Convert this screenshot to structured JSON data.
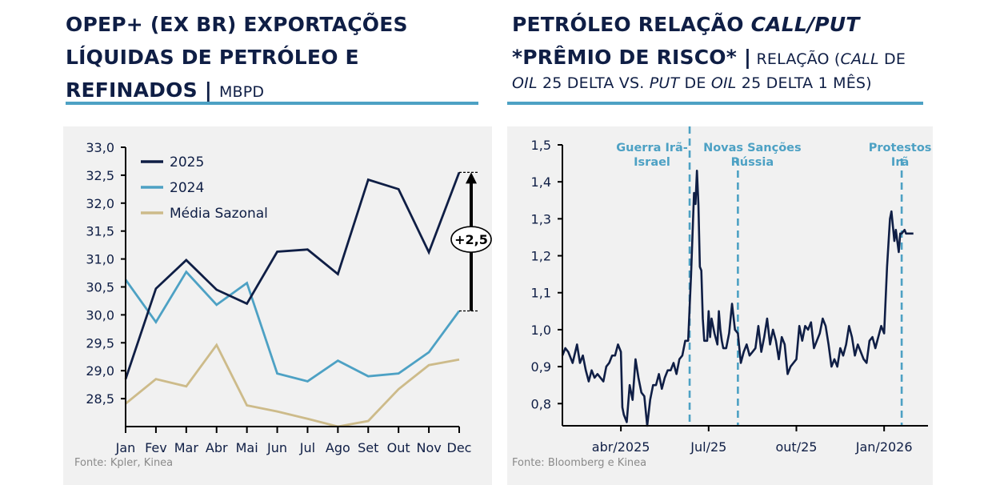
{
  "left": {
    "title_line1": "OPEP+ (EX BR) EXPORTAÇÕES",
    "title_line2": "LÍQUIDAS DE PETRÓLEO E",
    "title_line3": "REFINADOS |",
    "title_unit": "MBPD",
    "source": "Fonte: Kpler, Kinea",
    "annotation": "+2,5"
  },
  "right": {
    "title_line1_a": "PETRÓLEO RELAÇÃO ",
    "title_line1_b": "CALL/PUT",
    "title_line2": "*PRÊMIO DE RISCO* |",
    "subtitle_a": " RELAÇÃO (",
    "subtitle_b": "CALL",
    "subtitle_c": " DE",
    "subtitle_d": "OIL",
    "subtitle_e": " 25 DELTA VS. ",
    "subtitle_f": "PUT",
    "subtitle_g": " DE ",
    "subtitle_h": "OIL",
    "subtitle_i": " 25 DELTA 1 MÊS)",
    "source": "Fonte: Bloomberg e Kinea"
  },
  "colors": {
    "navy": "#0f1e45",
    "blue": "#4da1c4",
    "tan": "#cdbb8a",
    "panel": "#f1f1f1"
  },
  "chart_data": [
    {
      "type": "line",
      "title": "OPEP+ (EX BR) EXPORTAÇÕES LÍQUIDAS DE PETRÓLEO E REFINADOS | MBPD",
      "categories": [
        "Jan",
        "Fev",
        "Mar",
        "Abr",
        "Mai",
        "Jun",
        "Jul",
        "Ago",
        "Set",
        "Out",
        "Nov",
        "Dec"
      ],
      "ylim": [
        28.0,
        33.0
      ],
      "yticks": [
        "33,0",
        "32,5",
        "32,0",
        "31,5",
        "31,0",
        "30,5",
        "30,0",
        "29,5",
        "29,0",
        "28,5"
      ],
      "ytick_values": [
        33.0,
        32.5,
        32.0,
        31.5,
        31.0,
        30.5,
        30.0,
        29.5,
        29.0,
        28.5
      ],
      "legend": "top-left",
      "series": [
        {
          "name": "2025",
          "color": "#0f1e45",
          "values": [
            28.85,
            30.47,
            30.98,
            30.45,
            30.2,
            31.13,
            31.17,
            30.73,
            32.42,
            32.25,
            31.12,
            32.55
          ]
        },
        {
          "name": "2024",
          "color": "#4da1c4",
          "values": [
            30.63,
            29.87,
            30.77,
            30.18,
            30.57,
            28.95,
            28.81,
            29.18,
            28.9,
            28.95,
            29.33,
            30.07
          ]
        },
        {
          "name": "Média Sazonal",
          "color": "#cdbb8a",
          "values": [
            28.41,
            28.85,
            28.72,
            29.46,
            28.38,
            28.27,
            28.14,
            28.0,
            28.1,
            28.67,
            29.1,
            29.2
          ]
        }
      ],
      "annotations": [
        {
          "text": "+2,5",
          "from": 30.07,
          "to": 32.55,
          "category": "Dec"
        }
      ]
    },
    {
      "type": "line",
      "title": "PETRÓLEO RELAÇÃO CALL/PUT *PRÊMIO DE RISCO* | RELAÇÃO (CALL DE OIL 25 DELTA VS. PUT DE OIL 25 DELTA 1 MÊS)",
      "ylim": [
        0.74,
        1.5
      ],
      "yticks": [
        "1,5",
        "1,4",
        "1,3",
        "1,2",
        "1,1",
        "1,0",
        "0,9",
        "0,8"
      ],
      "ytick_values": [
        1.5,
        1.4,
        1.3,
        1.2,
        1.1,
        1.0,
        0.9,
        0.8
      ],
      "xlim": [
        0.0,
        12.5
      ],
      "xticks": [
        "abr/2025",
        "Jul/25",
        "out/25",
        "Jan/2026"
      ],
      "xtick_positions": [
        2.0,
        5.0,
        8.0,
        11.0
      ],
      "series": [
        {
          "name": "Call/Put",
          "color": "#0f1e45",
          "x": [
            0.0,
            0.1,
            0.2,
            0.35,
            0.5,
            0.6,
            0.7,
            0.8,
            0.9,
            1.0,
            1.1,
            1.2,
            1.3,
            1.4,
            1.5,
            1.6,
            1.7,
            1.8,
            1.9,
            2.0,
            2.05,
            2.1,
            2.2,
            2.3,
            2.4,
            2.5,
            2.6,
            2.7,
            2.8,
            2.9,
            3.0,
            3.1,
            3.2,
            3.3,
            3.4,
            3.5,
            3.6,
            3.7,
            3.8,
            3.9,
            4.0,
            4.1,
            4.2,
            4.3,
            4.4,
            4.5,
            4.55,
            4.6,
            4.65,
            4.7,
            4.75,
            4.8,
            4.85,
            4.9,
            4.95,
            5.0,
            5.05,
            5.1,
            5.2,
            5.3,
            5.35,
            5.4,
            5.45,
            5.5,
            5.6,
            5.7,
            5.8,
            5.9,
            6.0,
            6.1,
            6.2,
            6.3,
            6.4,
            6.5,
            6.6,
            6.7,
            6.8,
            6.9,
            7.0,
            7.1,
            7.2,
            7.3,
            7.4,
            7.5,
            7.6,
            7.7,
            7.8,
            7.9,
            8.0,
            8.1,
            8.2,
            8.3,
            8.4,
            8.5,
            8.6,
            8.7,
            8.8,
            8.9,
            9.0,
            9.1,
            9.2,
            9.3,
            9.4,
            9.5,
            9.6,
            9.7,
            9.8,
            9.9,
            10.0,
            10.1,
            10.2,
            10.3,
            10.4,
            10.5,
            10.6,
            10.7,
            10.8,
            10.9,
            11.0,
            11.1,
            11.2,
            11.25,
            11.3,
            11.35,
            11.4,
            11.5,
            11.55,
            11.6,
            11.7,
            11.75,
            11.8,
            11.9,
            12.0
          ],
          "values": [
            0.93,
            0.95,
            0.94,
            0.91,
            0.96,
            0.91,
            0.93,
            0.89,
            0.86,
            0.89,
            0.87,
            0.88,
            0.87,
            0.86,
            0.9,
            0.91,
            0.93,
            0.93,
            0.96,
            0.94,
            0.79,
            0.77,
            0.75,
            0.85,
            0.81,
            0.92,
            0.87,
            0.83,
            0.82,
            0.74,
            0.81,
            0.85,
            0.85,
            0.88,
            0.84,
            0.87,
            0.89,
            0.89,
            0.91,
            0.88,
            0.92,
            0.93,
            0.97,
            0.97,
            1.15,
            1.37,
            1.34,
            1.43,
            1.34,
            1.17,
            1.16,
            1.03,
            0.97,
            0.97,
            0.97,
            1.05,
            0.98,
            1.03,
            0.99,
            0.96,
            1.05,
            1.0,
            0.97,
            0.95,
            0.95,
            0.99,
            1.07,
            1.0,
            0.99,
            0.91,
            0.94,
            0.96,
            0.93,
            0.94,
            0.95,
            1.01,
            0.94,
            0.98,
            1.03,
            0.96,
            1.0,
            0.97,
            0.92,
            0.98,
            0.96,
            0.88,
            0.9,
            0.91,
            0.92,
            1.01,
            0.97,
            1.01,
            1.0,
            1.02,
            0.95,
            0.97,
            0.99,
            1.03,
            1.01,
            0.96,
            0.9,
            0.92,
            0.9,
            0.95,
            0.93,
            0.96,
            1.01,
            0.98,
            0.93,
            0.96,
            0.94,
            0.92,
            0.91,
            0.97,
            0.98,
            0.95,
            0.98,
            1.01,
            0.99,
            1.17,
            1.3,
            1.32,
            1.28,
            1.24,
            1.27,
            1.21,
            1.26,
            1.26,
            1.27,
            1.26,
            1.26,
            1.26,
            1.26
          ]
        }
      ],
      "events": [
        {
          "label_line1": "Guerra Irã-",
          "label_line2": "Israel",
          "x": 4.35
        },
        {
          "label_line1": "Novas Sanções",
          "label_line2": "Rússia",
          "x": 6.0
        },
        {
          "label_line1": "Protestos",
          "label_line2": "Irã",
          "x": 11.6
        }
      ]
    }
  ]
}
